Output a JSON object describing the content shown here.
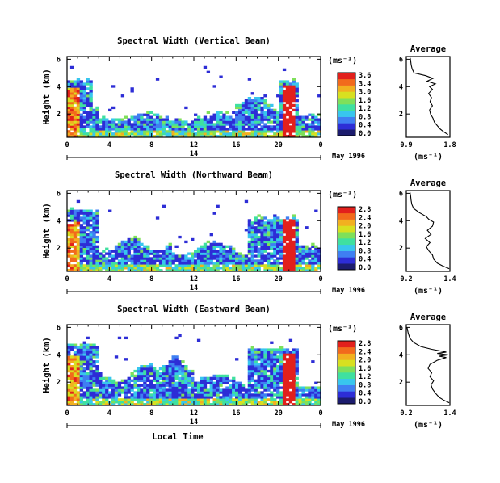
{
  "chart_data": [
    {
      "type": "heatmap",
      "title": "Spectral Width (Vertical Beam)",
      "ylabel": "Height (km)",
      "yticks": [
        "2",
        "4",
        "6"
      ],
      "xticks": [
        "0",
        "4",
        "8",
        "12",
        "16",
        "20",
        "0"
      ],
      "xlim": [
        0,
        24
      ],
      "ylim": [
        0.3,
        6.2
      ],
      "day_label": "14",
      "date_label": "May 1996",
      "colorbar": {
        "unit": "(ms⁻¹)",
        "ticks": [
          "3.6",
          "3.4",
          "3.0",
          "1.6",
          "1.2",
          "0.8",
          "0.4",
          "0.0"
        ],
        "range": [
          0.0,
          3.6
        ],
        "colors": [
          "#1c1c6e",
          "#2d2dd6",
          "#3f7ff2",
          "#38c6ee",
          "#3fe0a0",
          "#7fe05a",
          "#d8e020",
          "#f2b020",
          "#f26a1c",
          "#e2201c"
        ]
      },
      "average": {
        "title": "Average",
        "xlabel": "(ms⁻¹)",
        "xticks": [
          "0.9",
          "1.8"
        ],
        "xlim": [
          0.9,
          1.8
        ],
        "yticks": [
          "2",
          "4",
          "6"
        ],
        "ylim": [
          0.3,
          6.2
        ],
        "profile_height_km": [
          0.5,
          0.7,
          0.9,
          1.1,
          1.4,
          1.7,
          2.0,
          2.3,
          2.6,
          2.9,
          3.2,
          3.5,
          3.8,
          4.0,
          4.2,
          4.4,
          4.6,
          4.8,
          5.0,
          5.3,
          5.6,
          5.9,
          6.1
        ],
        "profile_width": [
          1.76,
          1.67,
          1.6,
          1.55,
          1.48,
          1.45,
          1.4,
          1.38,
          1.44,
          1.39,
          1.42,
          1.36,
          1.44,
          1.38,
          1.5,
          1.33,
          1.45,
          1.3,
          1.06,
          1.02,
          1.0,
          0.99,
          0.98
        ]
      }
    },
    {
      "type": "heatmap",
      "title": "Spectral Width (Northward Beam)",
      "ylabel": "Height (km)",
      "yticks": [
        "2",
        "4",
        "6"
      ],
      "xticks": [
        "0",
        "4",
        "8",
        "12",
        "16",
        "20",
        "0"
      ],
      "xlim": [
        0,
        24
      ],
      "ylim": [
        0.3,
        6.2
      ],
      "day_label": "14",
      "date_label": "May 1996",
      "colorbar": {
        "unit": "(ms⁻¹)",
        "ticks": [
          "2.8",
          "2.4",
          "2.0",
          "1.6",
          "1.2",
          "0.8",
          "0.4",
          "0.0"
        ],
        "range": [
          0.0,
          2.8
        ],
        "colors": [
          "#1c1c6e",
          "#2d2dd6",
          "#3f7ff2",
          "#38c6ee",
          "#3fe0a0",
          "#7fe05a",
          "#d8e020",
          "#f2b020",
          "#f26a1c",
          "#e2201c"
        ]
      },
      "average": {
        "title": "Average",
        "xlabel": "(ms⁻¹)",
        "xticks": [
          "0.2",
          "1.4"
        ],
        "xlim": [
          0.2,
          1.4
        ],
        "yticks": [
          "2",
          "4",
          "6"
        ],
        "ylim": [
          0.3,
          6.2
        ],
        "profile_height_km": [
          0.5,
          0.7,
          0.9,
          1.2,
          1.5,
          1.8,
          2.1,
          2.4,
          2.7,
          3.0,
          3.3,
          3.6,
          3.9,
          4.1,
          4.3,
          4.6,
          4.9,
          5.2,
          5.5,
          5.8,
          6.1
        ],
        "profile_width": [
          1.38,
          1.2,
          1.05,
          0.95,
          0.92,
          0.82,
          0.75,
          0.85,
          0.72,
          0.88,
          0.78,
          0.92,
          0.95,
          0.82,
          0.75,
          0.55,
          0.4,
          0.35,
          0.33,
          0.32,
          0.3
        ]
      }
    },
    {
      "type": "heatmap",
      "title": "Spectral Width (Eastward Beam)",
      "ylabel": "Height (km)",
      "yticks": [
        "2",
        "4",
        "6"
      ],
      "xticks": [
        "0",
        "4",
        "8",
        "12",
        "16",
        "20",
        "0"
      ],
      "xlim": [
        0,
        24
      ],
      "ylim": [
        0.3,
        6.2
      ],
      "day_label": "14",
      "date_label": "May 1996",
      "xlabel": "Local Time",
      "colorbar": {
        "unit": "(ms⁻¹)",
        "ticks": [
          "2.8",
          "2.4",
          "2.0",
          "1.6",
          "1.2",
          "0.8",
          "0.4",
          "0.0"
        ],
        "range": [
          0.0,
          2.8
        ],
        "colors": [
          "#1c1c6e",
          "#2d2dd6",
          "#3f7ff2",
          "#38c6ee",
          "#3fe0a0",
          "#7fe05a",
          "#d8e020",
          "#f2b020",
          "#f26a1c",
          "#e2201c"
        ]
      },
      "average": {
        "title": "Average",
        "xlabel": "(ms⁻¹)",
        "xticks": [
          "0.2",
          "1.4"
        ],
        "xlim": [
          0.2,
          1.4
        ],
        "yticks": [
          "2",
          "4",
          "6"
        ],
        "ylim": [
          0.3,
          6.2
        ],
        "profile_height_km": [
          0.5,
          0.7,
          0.9,
          1.2,
          1.5,
          1.8,
          2.1,
          2.4,
          2.7,
          3.0,
          3.3,
          3.6,
          3.8,
          3.9,
          4.0,
          4.1,
          4.2,
          4.4,
          4.6,
          4.9,
          5.2,
          5.6,
          6.0
        ],
        "profile_width": [
          1.38,
          1.22,
          1.1,
          1.0,
          0.92,
          0.88,
          0.95,
          0.85,
          0.9,
          0.8,
          0.85,
          1.05,
          1.3,
          1.1,
          1.35,
          1.05,
          1.3,
          0.9,
          0.6,
          0.4,
          0.3,
          0.25,
          0.22
        ]
      }
    }
  ]
}
